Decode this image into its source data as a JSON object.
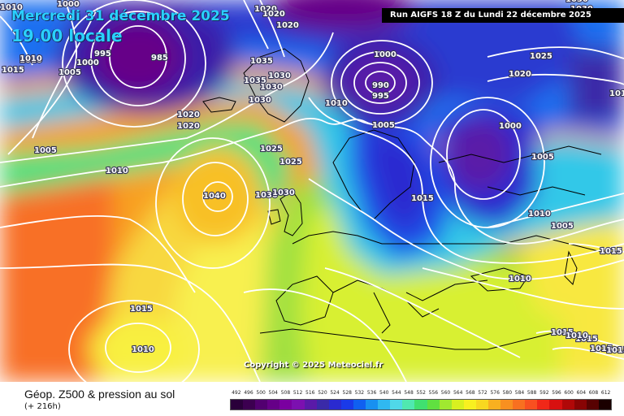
{
  "header": {
    "date_line": "Mercredi 31 décembre 2025",
    "time_line": "19.00 locale",
    "run": "Run AIGFS 18 Z du Lundi 22 décembre 2025"
  },
  "copyright": "Copyright © 2025 Meteociel.fr",
  "legend": {
    "title": "Géop. Z500 & pression au sol",
    "forecast_hour": "(+ 216h)",
    "values": [
      "492",
      "496",
      "500",
      "504",
      "508",
      "512",
      "516",
      "520",
      "524",
      "528",
      "532",
      "536",
      "540",
      "544",
      "548",
      "552",
      "556",
      "560",
      "564",
      "568",
      "572",
      "576",
      "580",
      "584",
      "588",
      "592",
      "596",
      "600",
      "604",
      "608",
      "612"
    ],
    "colors": [
      "#2a003a",
      "#3c0050",
      "#520070",
      "#660088",
      "#7a00a0",
      "#7c10b0",
      "#5a1aa8",
      "#3a2aa8",
      "#2a2ad0",
      "#1a3ae8",
      "#1060f0",
      "#1890f0",
      "#30b8f0",
      "#50d8e8",
      "#50e8b0",
      "#40e070",
      "#60e040",
      "#a0e830",
      "#d8f020",
      "#f8f020",
      "#f8d820",
      "#f8b020",
      "#f89020",
      "#f87020",
      "#f85020",
      "#f02818",
      "#d81010",
      "#b00808",
      "#880404",
      "#580202",
      "#1a0000"
    ]
  },
  "map": {
    "isobar_labels": [
      "1000",
      "995",
      "985",
      "1000",
      "1005",
      "1010",
      "1015",
      "1020",
      "1020",
      "1020",
      "1035",
      "1035",
      "1030",
      "1030",
      "1030",
      "1020",
      "1040",
      "1030",
      "1030",
      "1025",
      "1025",
      "1020",
      "1005",
      "1010",
      "1015",
      "1010",
      "1010",
      "1000",
      "990",
      "995",
      "1005",
      "1010",
      "1015",
      "1000",
      "1010",
      "1005",
      "1020",
      "1025",
      "1015",
      "1030",
      "1010",
      "1015",
      "1015",
      "1015",
      "1010",
      "1015",
      "1010",
      "1005",
      "1030",
      "1015"
    ]
  }
}
